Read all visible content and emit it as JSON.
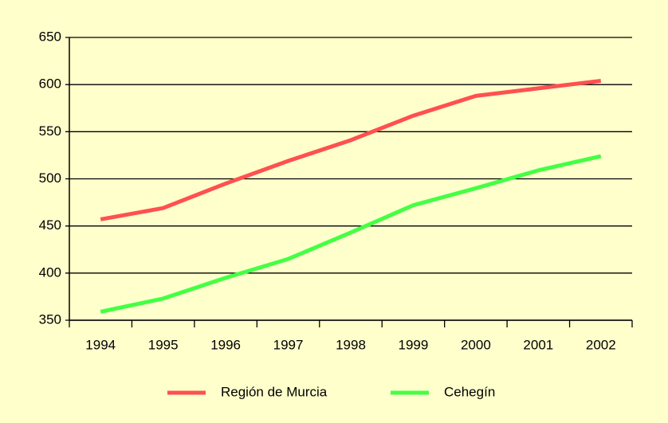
{
  "chart_data": {
    "type": "line",
    "categories": [
      "1994",
      "1995",
      "1996",
      "1997",
      "1998",
      "1999",
      "2000",
      "2001",
      "2002"
    ],
    "series": [
      {
        "name": "Región de Murcia",
        "color": "#ff5050",
        "values": [
          457,
          469,
          495,
          519,
          541,
          567,
          588,
          596,
          604
        ]
      },
      {
        "name": "Cehegín",
        "color": "#44ff44",
        "values": [
          359,
          373,
          395,
          415,
          443,
          472,
          490,
          509,
          524
        ]
      }
    ],
    "ylim": [
      350,
      650
    ],
    "yticks": [
      350,
      400,
      450,
      500,
      550,
      600,
      650
    ],
    "grid": true,
    "legend": "bottom"
  }
}
